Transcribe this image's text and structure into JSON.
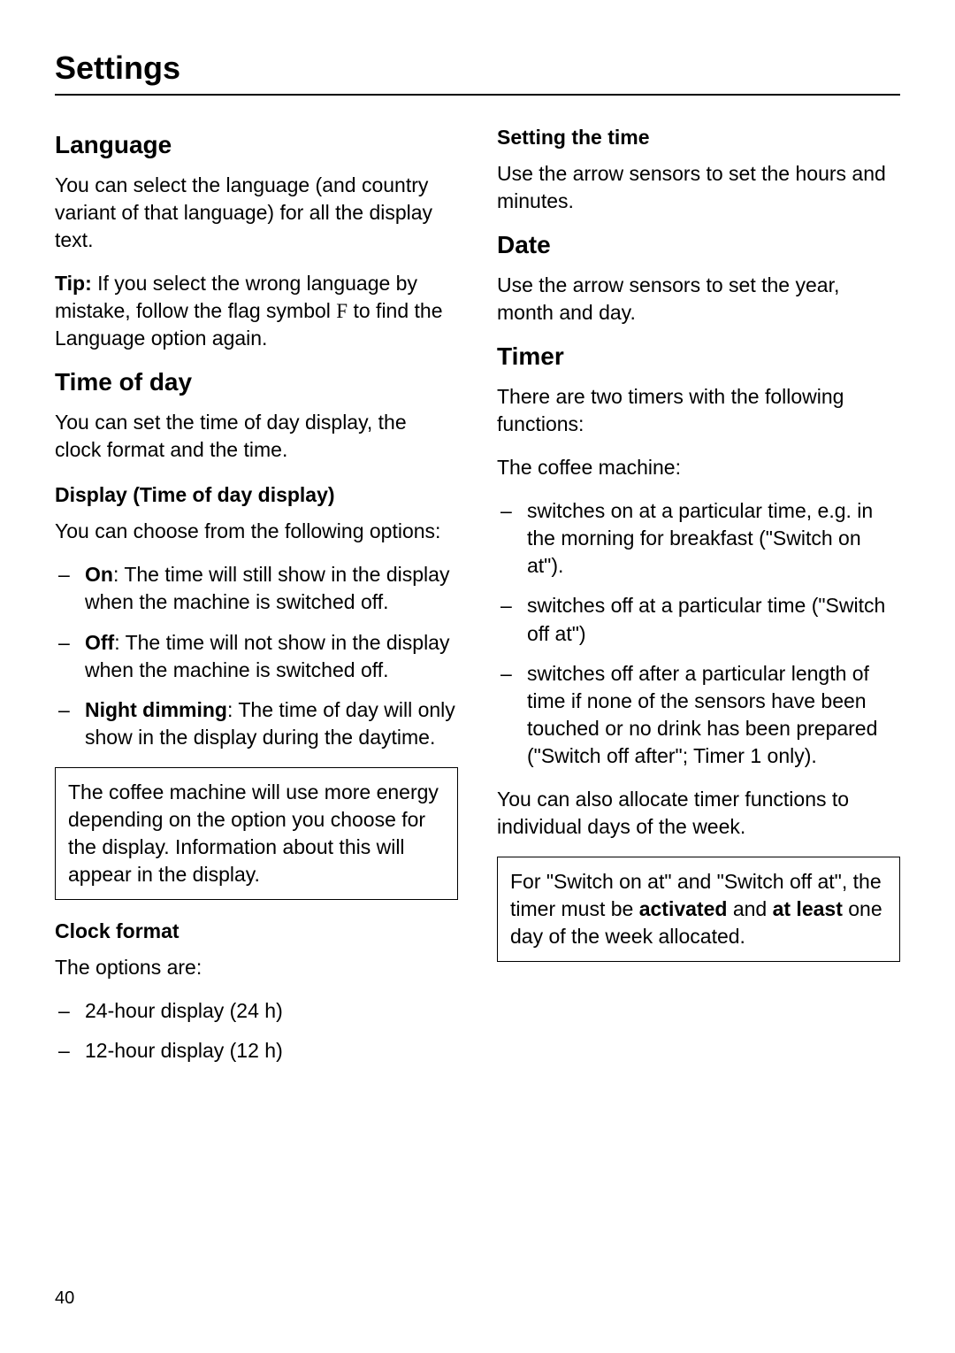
{
  "page": {
    "title": "Settings",
    "number": "40"
  },
  "left": {
    "language": {
      "heading": "Language",
      "p1": "You can select the language (and country variant of that language) for all the display text.",
      "tip_label": "Tip:",
      "tip_part1": " If you select the wrong language by mistake, follow the flag symbol ",
      "flag_symbol": "F",
      "tip_part2": "  to find the Language option again."
    },
    "timeofday": {
      "heading": "Time of day",
      "p1": "You can set the time of day display, the clock format and the time.",
      "display_heading": "Display (Time of day display)",
      "display_intro": "You can choose from the following options:",
      "options": [
        {
          "bold": "On",
          "text": ":  The time will still show in the display when the machine is switched off."
        },
        {
          "bold": "Off",
          "text": ": The time will not show in the display when the machine is switched off."
        },
        {
          "bold": "Night dimming",
          "text": ": The time of day will only show in the display during the daytime."
        }
      ],
      "note": "The coffee machine will use more energy depending on the option you choose for the display. Information about this will appear in the display.",
      "clock_heading": "Clock format",
      "clock_intro": "The options are:",
      "clock_options": [
        {
          "text": "24-hour display (24 h)"
        },
        {
          "text": "12-hour display (12 h)"
        }
      ]
    }
  },
  "right": {
    "setting_time": {
      "heading": "Setting the time",
      "p1": "Use the arrow sensors to set the hours and minutes."
    },
    "date": {
      "heading": "Date",
      "p1": "Use the arrow sensors to set the year, month and day."
    },
    "timer": {
      "heading": "Timer",
      "p1": "There are two timers with the following functions:",
      "p2": "The coffee machine:",
      "options": [
        {
          "text": "switches on at a particular time, e.g. in the morning for breakfast (\"Switch on at\")."
        },
        {
          "text": "switches off at a particular time (\"Switch off at\")"
        },
        {
          "text": "switches off after a particular length of time if none of the sensors have been touched or no drink has been prepared (\"Switch off after\"; Timer 1 only)."
        }
      ],
      "p3": "You can also allocate timer functions to individual days of the week.",
      "note_part1": "For \"Switch on at\" and \"Switch off at\", the timer must be ",
      "note_b1": "activated",
      "note_part2": " and ",
      "note_b2": "at least",
      "note_part3": " one day of the week allocated."
    }
  }
}
